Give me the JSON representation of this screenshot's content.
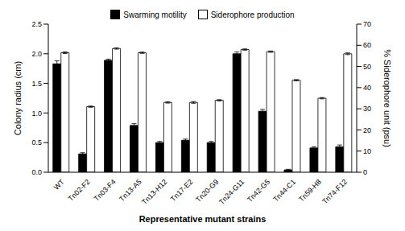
{
  "chart_data": {
    "type": "bar",
    "x_label": "Representative mutant strains",
    "y_label": "Colony radius (cm)",
    "y2_label": "% Siderophore unit (psu)",
    "categories": [
      "WT",
      "Tn02-F2",
      "Tn03-F4",
      "Tn13-A5",
      "Tn13-H12",
      "Tn17-E2",
      "Tn20-G9",
      "Tn24-G11",
      "Tn42-G5",
      "Tn44-C1",
      "Tn59-H8",
      "Tn74-F12"
    ],
    "series": [
      {
        "name": "Swarming motility",
        "color": "#000000",
        "values": [
          1.83,
          0.31,
          1.89,
          0.79,
          0.5,
          0.54,
          0.5,
          2.0,
          1.03,
          0.04,
          0.41,
          0.43
        ],
        "errors": [
          0.05,
          0.02,
          0.02,
          0.03,
          0.02,
          0.02,
          0.02,
          0.03,
          0.03,
          0.01,
          0.02,
          0.03
        ]
      },
      {
        "name": "Siderophore production",
        "color": "#ffffff",
        "axis": "y2",
        "values": [
          56.5,
          31,
          58.5,
          56.5,
          33,
          33,
          34,
          58,
          57,
          43.5,
          35,
          56
        ],
        "errors": [
          0.4,
          0.3,
          0.3,
          0.3,
          0.3,
          0.4,
          0.3,
          0.3,
          0.3,
          0.3,
          0.3,
          0.4
        ]
      }
    ],
    "ylim": [
      0,
      2.5
    ],
    "yticks": [
      {
        "value": 0,
        "label": "0.0"
      },
      {
        "value": 0.5,
        "label": "0.5"
      },
      {
        "value": 1,
        "label": "1.0"
      },
      {
        "value": 1.5,
        "label": "1.5"
      },
      {
        "value": 2,
        "label": "2.0"
      },
      {
        "value": 2.5,
        "label": "2.5"
      }
    ],
    "y2lim": [
      0,
      70
    ],
    "y2ticks": [
      0,
      10,
      20,
      30,
      40,
      50,
      60,
      70
    ],
    "legend": "top",
    "grid": false
  }
}
